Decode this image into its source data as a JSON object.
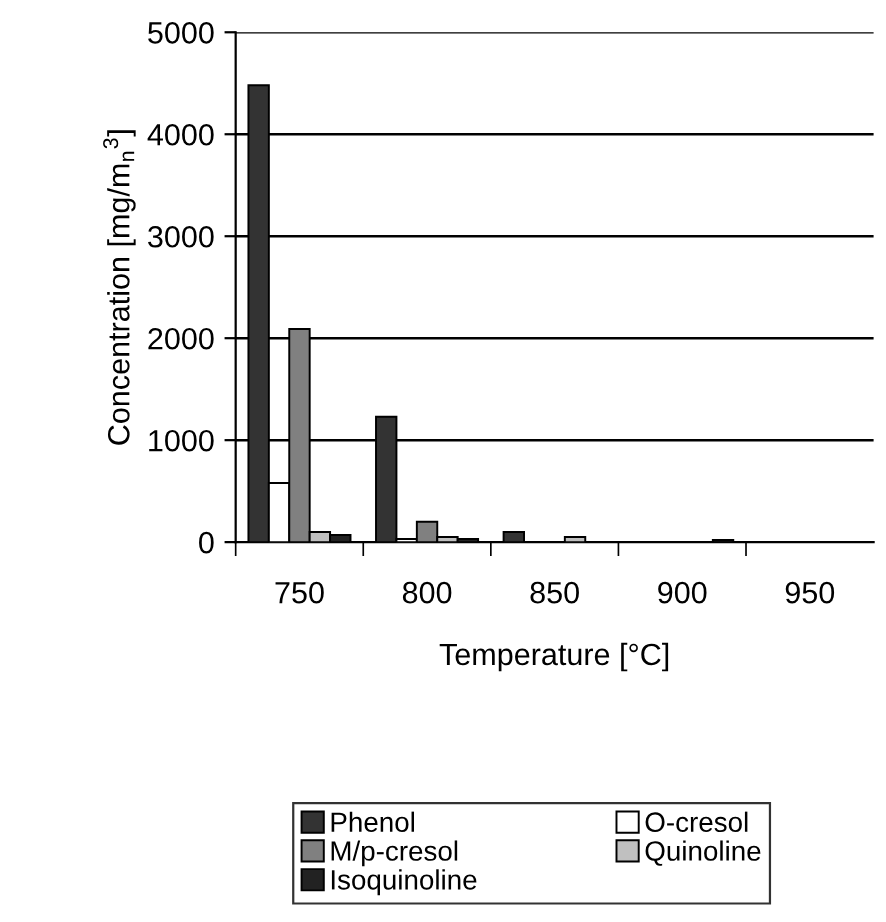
{
  "chart_data": {
    "type": "bar",
    "xlabel": "Temperature [°C]",
    "ylabel": "Concentration [mg/m$_{n}$$^{3}$]",
    "categories": [
      "750",
      "800",
      "850",
      "900",
      "950"
    ],
    "series": [
      {
        "name": "Phenol",
        "color": "#333333",
        "values": [
          4480,
          1230,
          100,
          null,
          null
        ]
      },
      {
        "name": "O-cresol",
        "color": "#ffffff",
        "values": [
          580,
          30,
          null,
          null,
          null
        ]
      },
      {
        "name": "M/p-cresol",
        "color": "#808080",
        "values": [
          2090,
          200,
          null,
          null,
          null
        ]
      },
      {
        "name": "Quinoline",
        "color": "#c0c0c0",
        "values": [
          100,
          50,
          50,
          null,
          null
        ]
      },
      {
        "name": "Isoquinoline",
        "color": "#222222",
        "values": [
          70,
          30,
          null,
          20,
          null
        ]
      }
    ],
    "ylim": [
      0,
      5000
    ],
    "yticks": [
      0,
      1000,
      2000,
      3000,
      4000,
      5000
    ],
    "grid": "y",
    "legend": "bottom"
  }
}
